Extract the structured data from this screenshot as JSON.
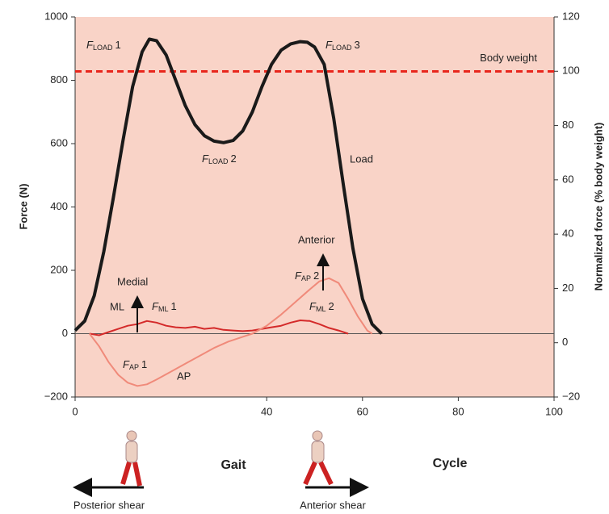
{
  "chart_data": {
    "type": "line",
    "ylabel": "Force (N)",
    "y2label": "Normalized force (% body weight)",
    "xlim": [
      0,
      100
    ],
    "xticks": [
      0,
      40,
      60,
      80,
      100
    ],
    "ylim": [
      -200,
      1000
    ],
    "yticks": [
      {
        "value": -200,
        "label": "−200"
      },
      0,
      200,
      400,
      600,
      800,
      1000
    ],
    "y2lim": [
      -20,
      120
    ],
    "y2ticks": [
      {
        "value": -20,
        "label": "−20"
      },
      0,
      20,
      40,
      60,
      80,
      100,
      120
    ],
    "background": "#f9d3c7",
    "reference_lines": [
      {
        "name": "Body weight",
        "value": 828,
        "color": "#e8261c"
      }
    ],
    "series": [
      {
        "name": "Load",
        "color": "#1a1a1a",
        "x": [
          0,
          2,
          4,
          6,
          8,
          10,
          12,
          14,
          15.5,
          17,
          19,
          21,
          23,
          25,
          27,
          29,
          31,
          33,
          35,
          37,
          39,
          41,
          43,
          45,
          47,
          48.5,
          50,
          52,
          54,
          56,
          58,
          60,
          62,
          64
        ],
        "values": [
          10,
          40,
          120,
          260,
          430,
          610,
          780,
          890,
          930,
          925,
          880,
          800,
          720,
          660,
          625,
          608,
          603,
          610,
          640,
          700,
          780,
          850,
          895,
          915,
          922,
          920,
          905,
          850,
          680,
          470,
          270,
          110,
          30,
          0
        ]
      },
      {
        "name": "ML",
        "color": "#d42a2a",
        "x": [
          3,
          5,
          7,
          9,
          11,
          13,
          15,
          17,
          19,
          21,
          23,
          25,
          27,
          29,
          31,
          33,
          35,
          37,
          39,
          41,
          43,
          45,
          47,
          49,
          51,
          53,
          55,
          57
        ],
        "values": [
          0,
          -5,
          5,
          15,
          25,
          30,
          40,
          35,
          25,
          20,
          18,
          22,
          15,
          18,
          12,
          10,
          8,
          10,
          15,
          20,
          25,
          35,
          42,
          40,
          30,
          18,
          10,
          0
        ]
      },
      {
        "name": "AP",
        "color": "#f08a7a",
        "x": [
          3,
          5,
          7,
          9,
          11,
          13,
          15,
          17,
          20,
          23,
          26,
          29,
          32,
          35,
          37,
          40,
          43,
          46,
          49,
          51,
          53,
          55,
          57,
          59,
          61,
          62
        ],
        "values": [
          0,
          -40,
          -90,
          -130,
          -155,
          -165,
          -160,
          -145,
          -120,
          -95,
          -70,
          -45,
          -25,
          -10,
          0,
          25,
          60,
          100,
          140,
          165,
          175,
          160,
          110,
          55,
          10,
          0
        ]
      }
    ],
    "annotations": [
      {
        "symbol": "F",
        "sub": "LOAD",
        "index": "1"
      },
      {
        "symbol": "F",
        "sub": "LOAD",
        "index": "2"
      },
      {
        "symbol": "F",
        "sub": "LOAD",
        "index": "3"
      },
      {
        "symbol": "F",
        "sub": "ML",
        "index": "1"
      },
      {
        "symbol": "F",
        "sub": "ML",
        "index": "2"
      },
      {
        "symbol": "F",
        "sub": "AP",
        "index": "1"
      },
      {
        "symbol": "F",
        "sub": "AP",
        "index": "2"
      }
    ],
    "labels": [
      "Medial",
      "Anterior"
    ],
    "caption": [
      "Gait",
      "Cycle"
    ],
    "shear_labels": [
      "Posterior shear",
      "Anterior shear"
    ]
  }
}
